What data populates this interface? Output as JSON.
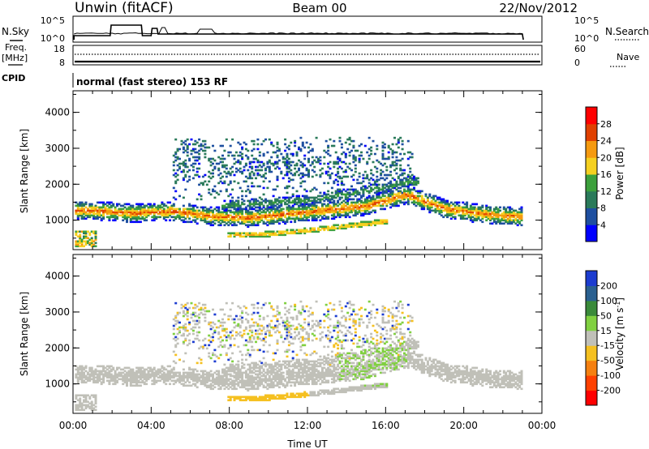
{
  "header": {
    "station": "Unwin (fitACF)",
    "beam": "Beam 00",
    "date": "22/Nov/2012"
  },
  "strips": {
    "nsky_label": "N.Sky",
    "nsearch_label": "N.Search",
    "noise_ticks_left": [
      "10^5",
      "10^0"
    ],
    "noise_ticks_right": [
      "10^5",
      "10^0"
    ],
    "freq_label": "Freq.",
    "freq_unit": "[MHz]",
    "freq_ticks": [
      "18",
      "8"
    ],
    "nave_label": "Nave",
    "nave_ticks": [
      "60",
      "0"
    ],
    "cpid_label": "CPID",
    "cpid_text": "normal (fast stereo) 153 RF"
  },
  "axes": {
    "xlabel": "Time UT",
    "x_ticks": [
      "00:00",
      "04:00",
      "08:00",
      "12:00",
      "16:00",
      "20:00",
      "00:00"
    ],
    "x_range_hours": [
      0,
      24
    ],
    "ylabel": "Slant Range [km]",
    "y_ticks": [
      "4000",
      "3000",
      "2000",
      "1000"
    ],
    "y_range_km": [
      180,
      4600
    ]
  },
  "chart_data": [
    {
      "type": "heatmap",
      "parameter": "Power",
      "colorbar_label": "Power [dB]",
      "colorbar_ticks": [
        "28",
        "24",
        "20",
        "16",
        "12",
        "8",
        "4"
      ],
      "colors": [
        "#0000ff",
        "#1e4fa0",
        "#2a7a5a",
        "#3ca03c",
        "#f5d020",
        "#f59a10",
        "#e04000",
        "#ff0000"
      ],
      "data_end_hour": 23.0,
      "features": [
        {
          "name": "main-band",
          "t": [
            1,
            3,
            5,
            7,
            9,
            11,
            13,
            15,
            17,
            19,
            21,
            23
          ],
          "range_km": [
            1250,
            1180,
            1230,
            1100,
            1050,
            1160,
            1260,
            1380,
            1700,
            1300,
            1150,
            1080
          ],
          "peak_db": 28
        },
        {
          "name": "upper-band",
          "t": [
            8,
            10,
            12,
            14,
            16,
            17.2
          ],
          "range_km": [
            1400,
            1450,
            1550,
            1700,
            1900,
            2050
          ],
          "peak_db": 14
        },
        {
          "name": "near-echo",
          "t": [
            8,
            10,
            12,
            14,
            16
          ],
          "range_km": [
            560,
            600,
            700,
            820,
            950
          ],
          "peak_db": 24
        },
        {
          "name": "scatter-region",
          "t": [
            5,
            17
          ],
          "range_km": [
            1500,
            3300
          ],
          "peak_db": 8
        }
      ]
    },
    {
      "type": "heatmap",
      "parameter": "Velocity",
      "colorbar_label": "Velocity [m s^-1]",
      "colorbar_ticks": [
        "200",
        "100",
        "50",
        "15",
        "-15",
        "-50",
        "-100",
        "-200"
      ],
      "colors": [
        "#1c3cd0",
        "#2a6090",
        "#3a8a3a",
        "#80d040",
        "#c0c0b8",
        "#f5c020",
        "#f58010",
        "#ff4000",
        "#ff0000"
      ],
      "data_end_hour": 23.0,
      "features": [
        {
          "name": "ground-scatter",
          "velocity": 0
        },
        {
          "name": "near-echo",
          "t": [
            8,
            12
          ],
          "range_km": [
            560,
            700
          ],
          "velocity": -40
        },
        {
          "name": "green-patch",
          "t": [
            13.5,
            17
          ],
          "range_km": [
            900,
            2200
          ],
          "velocity": 40
        }
      ]
    }
  ]
}
